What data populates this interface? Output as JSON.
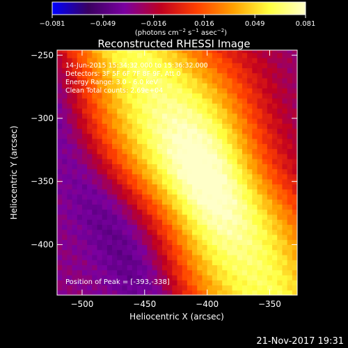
{
  "colorbar": {
    "ticks": [
      "−0.081",
      "−0.049",
      "−0.016",
      "0.016",
      "0.049",
      "0.081"
    ],
    "unit_label_parts": [
      "(photons cm",
      "−2",
      " s",
      "−1",
      " asec",
      "−2",
      ")"
    ]
  },
  "footer": {
    "timestamp": "21-Nov-2017 19:31"
  },
  "annotations": {
    "time_range": "14-Jun-2015 15:34:32.000 to 15:36:32.000",
    "detectors": "Detectors: 3F 5F 6F 7F 8F 9F, Att 0",
    "energy": "Energy Range: 3.0 - 6.0 keV",
    "method": "Clean    Total counts: 2.69e+04",
    "peak": "Position of Peak = [-393,-338]"
  },
  "chart_data": {
    "type": "heatmap",
    "title": "Reconstructed RHESSI Image",
    "xlabel": "Heliocentric X (arcsec)",
    "ylabel": "Heliocentric Y (arcsec)",
    "xlim": [
      -520,
      -328
    ],
    "ylim": [
      -440,
      -246
    ],
    "xticks": [
      -500,
      -450,
      -400,
      -350
    ],
    "yticks": [
      -250,
      -300,
      -350,
      -400
    ],
    "zlim": [
      -0.081,
      0.081
    ],
    "peak": [
      -393,
      -338
    ],
    "colors": {
      "stops": [
        "#0000ff",
        "#3a0060",
        "#7a00a0",
        "#c00020",
        "#ff4000",
        "#ffa000",
        "#ffff40",
        "#ffffc8"
      ]
    }
  }
}
